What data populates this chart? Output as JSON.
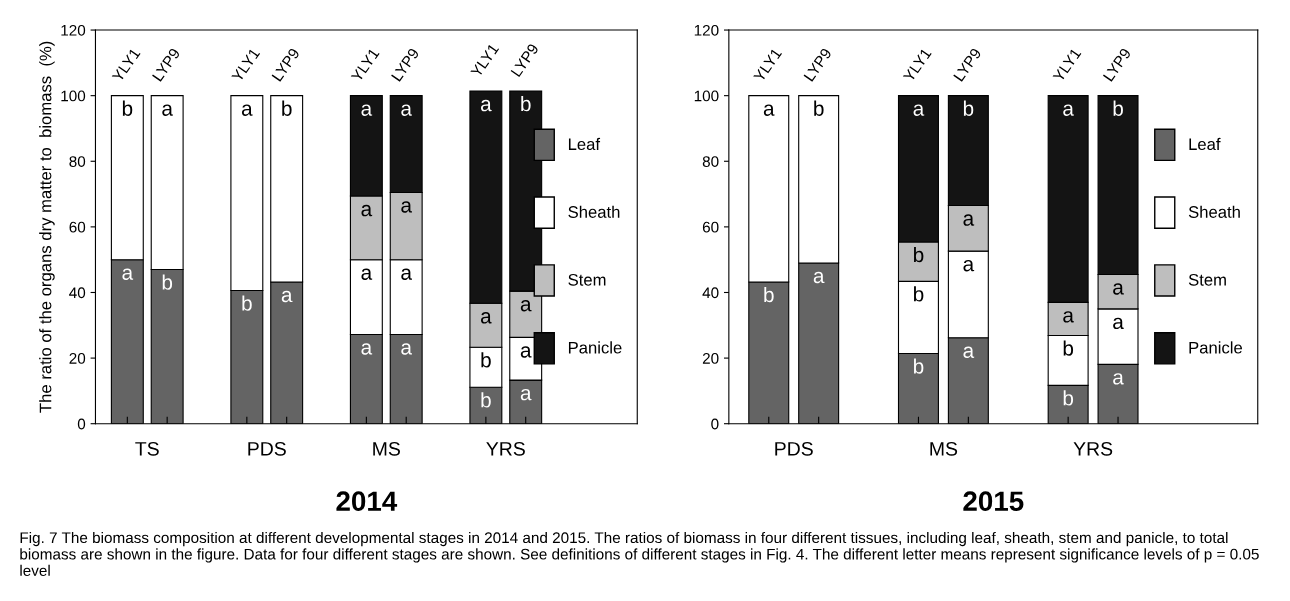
{
  "chart_data": [
    {
      "type": "bar",
      "stacked": true,
      "title": "2014",
      "ylabel": "The ratio of the organs dry matter to  biomass  (%)",
      "categories": [
        "YLY1",
        "LYP9",
        null,
        "YLY1",
        "LYP9",
        null,
        "YLY1",
        "LYP9",
        null,
        "YLY1",
        "LYP9",
        null,
        null
      ],
      "ylim": [
        0,
        120
      ],
      "yticks": [
        0,
        20,
        40,
        60,
        80,
        100,
        120
      ],
      "grid": false,
      "legend": "right",
      "annotations": [
        "TS",
        "PDS",
        "MS",
        "YRS"
      ],
      "series": [
        {
          "name": "Leaf",
          "color": "#646464",
          "values": [
            50,
            47,
            null,
            40.6,
            43.2,
            null,
            27.2,
            27.2,
            null,
            11.1,
            13.3,
            null,
            null
          ],
          "value_labels": [
            "a",
            "b",
            null,
            "b",
            "a",
            null,
            "a",
            "a",
            null,
            "b",
            "a",
            null,
            null
          ]
        },
        {
          "name": "Sheath",
          "color": "#ffffff",
          "values": [
            50,
            53,
            null,
            59.4,
            56.8,
            null,
            22.8,
            22.8,
            null,
            12.2,
            13.0,
            null,
            null
          ],
          "value_labels": [
            "b",
            "a",
            null,
            "a",
            "b",
            null,
            "a",
            "a",
            null,
            "b",
            "a",
            null,
            null
          ]
        },
        {
          "name": "Stem",
          "color": "#bebebe",
          "values": [
            null,
            null,
            null,
            null,
            null,
            null,
            19.4,
            20.5,
            null,
            13.4,
            14.1,
            null,
            null
          ],
          "value_labels": [
            null,
            null,
            null,
            null,
            null,
            null,
            "a",
            "a",
            null,
            "a",
            "a",
            null,
            null
          ]
        },
        {
          "name": "Panicle",
          "color": "#141414",
          "values": [
            null,
            null,
            null,
            null,
            null,
            null,
            30.6,
            29.5,
            null,
            64.7,
            61.0,
            null,
            null
          ],
          "value_labels": [
            null,
            null,
            null,
            null,
            null,
            null,
            "a",
            "a",
            null,
            "a",
            "b",
            null,
            null
          ]
        }
      ]
    },
    {
      "type": "bar",
      "stacked": true,
      "title": "2015",
      "categories": [
        "YLY1",
        "LYP9",
        null,
        "YLY1",
        "LYP9",
        null,
        "YLY1",
        "LYP9",
        null,
        null
      ],
      "ylim": [
        0,
        120
      ],
      "yticks": [
        0,
        20,
        40,
        60,
        80,
        100,
        120
      ],
      "grid": false,
      "legend": "right",
      "annotations": [
        "PDS",
        "MS",
        "YRS",
        "Fig. 7 The biomass composition at different developmental stages in 2014 and 2015. The ratios of biomass in four different tissues, including leaf, sheath, stem and panicle, to total biomass are shown in the figure. Data for four different stages are shown. See definitions of different stages in Fig. 4. The different letter means represent significance levels of p = 0.05 level"
      ],
      "series": [
        {
          "name": "Leaf",
          "color": "#646464",
          "values": [
            43.2,
            49.0,
            null,
            21.4,
            26.2,
            null,
            11.7,
            18.1,
            null,
            null
          ],
          "value_labels": [
            "b",
            "a",
            null,
            "b",
            "a",
            null,
            "b",
            "a",
            null,
            null
          ]
        },
        {
          "name": "Sheath",
          "color": "#ffffff",
          "values": [
            56.8,
            51.0,
            null,
            22.0,
            26.4,
            null,
            15.2,
            16.9,
            null,
            null
          ],
          "value_labels": [
            "a",
            "b",
            null,
            "b",
            "a",
            null,
            "b",
            "a",
            null,
            null
          ]
        },
        {
          "name": "Stem",
          "color": "#bebebe",
          "values": [
            null,
            null,
            null,
            12.0,
            13.9,
            null,
            10.1,
            10.5,
            null,
            null
          ],
          "value_labels": [
            null,
            null,
            null,
            "b",
            "a",
            null,
            "a",
            "a",
            null,
            null
          ]
        },
        {
          "name": "Panicle",
          "color": "#141414",
          "values": [
            null,
            null,
            null,
            44.6,
            33.5,
            null,
            63.0,
            54.5,
            null,
            null
          ],
          "value_labels": [
            null,
            null,
            null,
            "a",
            "b",
            null,
            "a",
            "b",
            null,
            null
          ]
        }
      ]
    }
  ]
}
